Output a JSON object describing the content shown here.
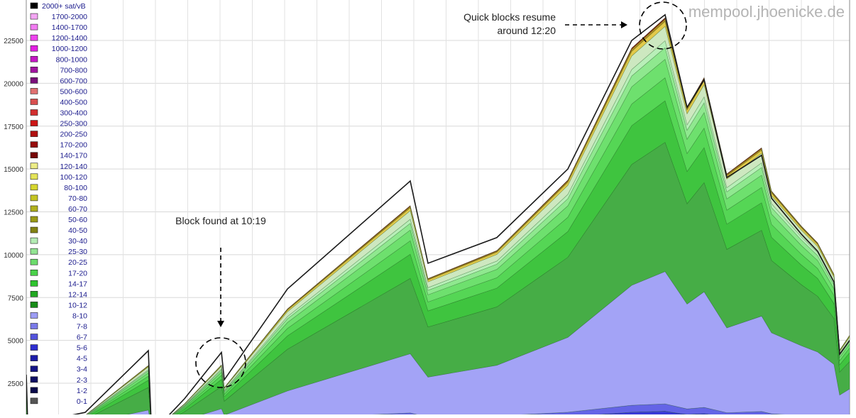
{
  "chart_data": {
    "type": "area",
    "stacked": true,
    "watermark": "mempool.jhoenicke.de",
    "ylim": [
      0,
      24000
    ],
    "y_ticks": [
      2500,
      5000,
      7500,
      10000,
      12500,
      15000,
      17500,
      20000,
      22500
    ],
    "grid": true,
    "legend_position": "left",
    "legend": [
      {
        "label": "2000+ sat/vB",
        "color": "#000000"
      },
      {
        "label": "1700-2000",
        "color": "#f4a6f4"
      },
      {
        "label": "1400-1700",
        "color": "#f27cf2"
      },
      {
        "label": "1200-1400",
        "color": "#ee44ee"
      },
      {
        "label": "1000-1200",
        "color": "#e21fe2"
      },
      {
        "label": "800-1000",
        "color": "#c417c4"
      },
      {
        "label": "700-800",
        "color": "#a0139f"
      },
      {
        "label": "600-700",
        "color": "#7a0f7a"
      },
      {
        "label": "500-600",
        "color": "#e07070"
      },
      {
        "label": "400-500",
        "color": "#d84f4f"
      },
      {
        "label": "300-400",
        "color": "#d22f2f"
      },
      {
        "label": "250-300",
        "color": "#cc1515"
      },
      {
        "label": "200-250",
        "color": "#b01010"
      },
      {
        "label": "170-200",
        "color": "#960d0d"
      },
      {
        "label": "140-170",
        "color": "#760909"
      },
      {
        "label": "120-140",
        "color": "#ecec86"
      },
      {
        "label": "100-120",
        "color": "#e4e458"
      },
      {
        "label": "80-100",
        "color": "#d6d62e"
      },
      {
        "label": "70-80",
        "color": "#c4c422"
      },
      {
        "label": "60-70",
        "color": "#b0b01c"
      },
      {
        "label": "50-60",
        "color": "#9a9a16"
      },
      {
        "label": "40-50",
        "color": "#828212"
      },
      {
        "label": "30-40",
        "color": "#b4ecb4"
      },
      {
        "label": "25-30",
        "color": "#92e492"
      },
      {
        "label": "20-25",
        "color": "#6cdc6c"
      },
      {
        "label": "17-20",
        "color": "#4ad24a"
      },
      {
        "label": "14-17",
        "color": "#2ec42e"
      },
      {
        "label": "12-14",
        "color": "#22a822"
      },
      {
        "label": "10-12",
        "color": "#188c18"
      },
      {
        "label": "8-10",
        "color": "#9c9cf4"
      },
      {
        "label": "7-8",
        "color": "#7a7ae8"
      },
      {
        "label": "6-7",
        "color": "#5252dc"
      },
      {
        "label": "5-6",
        "color": "#2e2ed0"
      },
      {
        "label": "4-5",
        "color": "#1c1ca8"
      },
      {
        "label": "3-4",
        "color": "#141486"
      },
      {
        "label": "2-3",
        "color": "#0e0e64"
      },
      {
        "label": "1-2",
        "color": "#0a0a4a"
      },
      {
        "label": "0-1",
        "color": "#555555"
      }
    ],
    "total_profile": [
      3000,
      200,
      200,
      800,
      4400,
      200,
      200,
      1600,
      4300,
      2700,
      8000,
      14300,
      9500,
      11000,
      15000,
      22500,
      24000,
      18600,
      20200,
      14500,
      15800,
      13300,
      11200,
      10200,
      8400,
      4200,
      5000
    ],
    "annotations": [
      {
        "text": "Block found at 10:19"
      },
      {
        "text_lines": [
          "Quick blocks resume",
          "around 12:20"
        ]
      }
    ]
  }
}
